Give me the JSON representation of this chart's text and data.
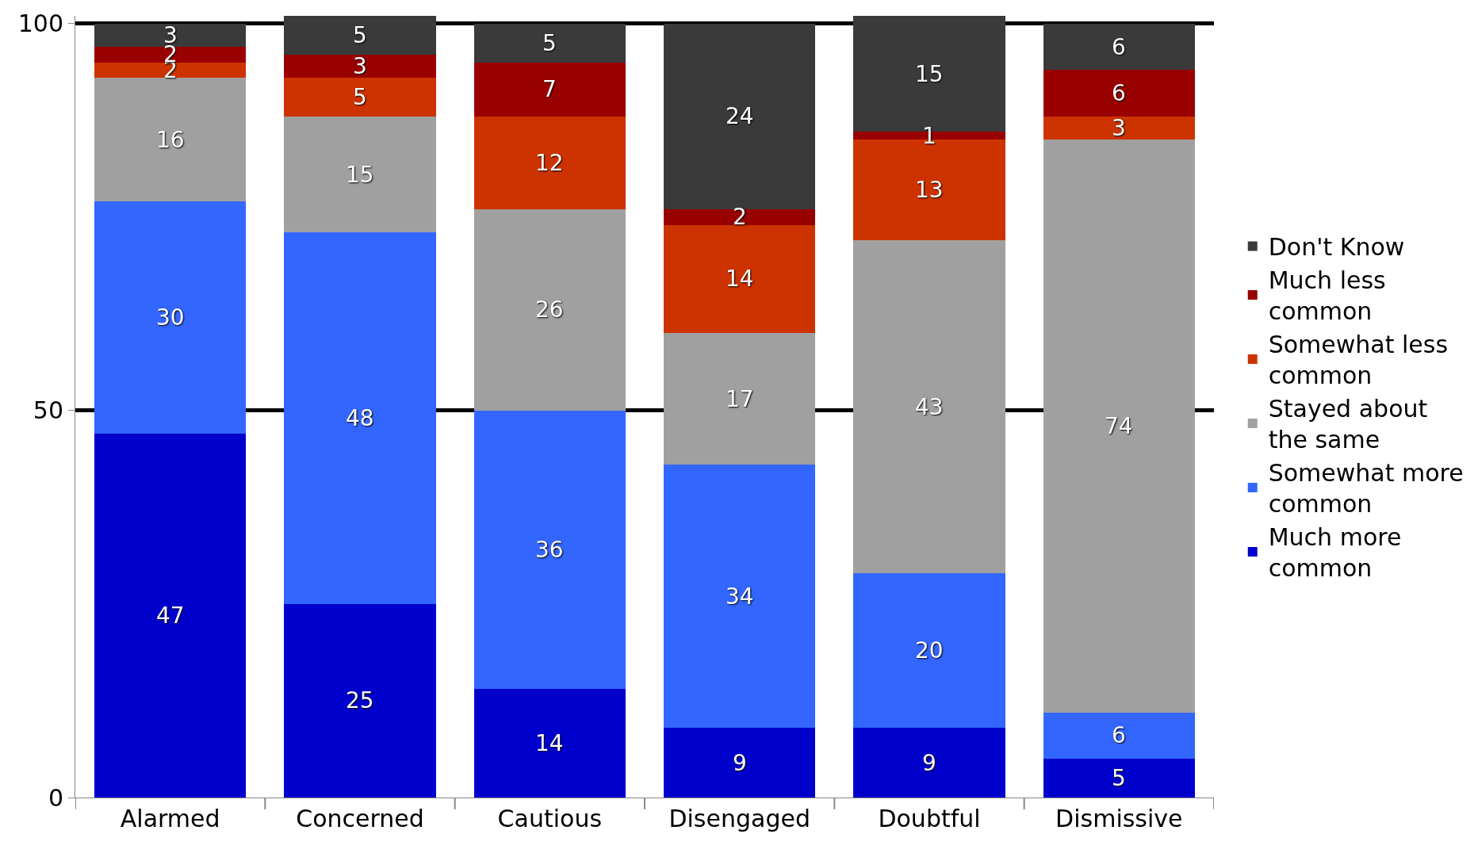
{
  "chart_data": {
    "type": "bar",
    "stacked": true,
    "categories": [
      "Alarmed",
      "Concerned",
      "Cautious",
      "Disengaged",
      "Doubtful",
      "Dismissive"
    ],
    "series": [
      {
        "name": "Much more common",
        "color": "#0000cc",
        "values": [
          47,
          25,
          14,
          9,
          9,
          5
        ]
      },
      {
        "name": "Somewhat more common",
        "color": "#3366ff",
        "values": [
          30,
          48,
          36,
          34,
          20,
          6
        ]
      },
      {
        "name": "Stayed about the same",
        "color": "#a0a0a0",
        "values": [
          16,
          15,
          26,
          17,
          43,
          74
        ]
      },
      {
        "name": "Somewhat less common",
        "color": "#cc3300",
        "values": [
          2,
          5,
          12,
          14,
          13,
          3
        ]
      },
      {
        "name": "Much less common",
        "color": "#990000",
        "values": [
          2,
          3,
          7,
          2,
          1,
          6
        ]
      },
      {
        "name": "Don't Know",
        "color": "#3a3a3a",
        "values": [
          3,
          5,
          5,
          24,
          15,
          6
        ]
      }
    ],
    "ylim": [
      0,
      101
    ],
    "yticks": [
      0,
      50,
      100
    ],
    "grid": "y",
    "legend": "right",
    "data_labels": true
  }
}
